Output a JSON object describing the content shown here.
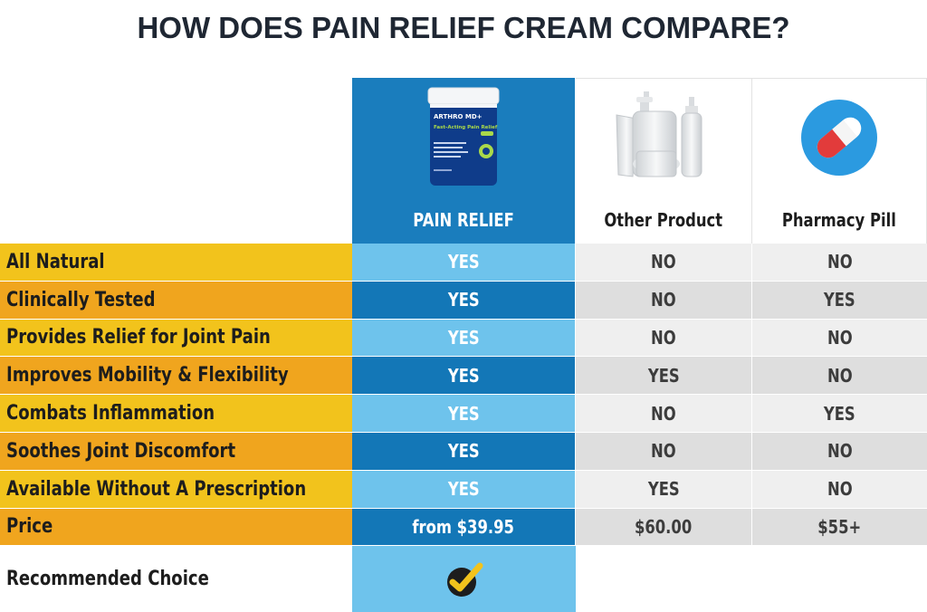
{
  "title": "HOW DOES PAIN RELIEF CREAM COMPARE?",
  "columns": [
    {
      "label": "PAIN RELIEF",
      "image": "arthro-md-cream-jar"
    },
    {
      "label": "Other Product",
      "image": "generic-bottles"
    },
    {
      "label": "Pharmacy Pill",
      "image": "pill-capsule-icon"
    }
  ],
  "product_jar_text": {
    "brand": "ARTHRO MD+",
    "line1": "Fast-Acting Pain Relief"
  },
  "rows": [
    {
      "feature": "All Natural",
      "values": [
        "YES",
        "NO",
        "NO"
      ]
    },
    {
      "feature": "Clinically Tested",
      "values": [
        "YES",
        "NO",
        "YES"
      ]
    },
    {
      "feature": "Provides Relief for Joint Pain",
      "values": [
        "YES",
        "NO",
        "NO"
      ]
    },
    {
      "feature": "Improves Mobility & Flexibility",
      "values": [
        "YES",
        "YES",
        "NO"
      ]
    },
    {
      "feature": "Combats Inflammation",
      "values": [
        "YES",
        "NO",
        "YES"
      ]
    },
    {
      "feature": "Soothes Joint Discomfort",
      "values": [
        "YES",
        "NO",
        "NO"
      ]
    },
    {
      "feature": "Available Without A Prescription",
      "values": [
        "YES",
        "YES",
        "NO"
      ]
    },
    {
      "feature": "Price",
      "values": [
        "from $39.95",
        "$60.00",
        "$55+"
      ]
    }
  ],
  "recommended": {
    "label": "Recommended Choice",
    "icon": "checkmark-badge-icon"
  },
  "colors": {
    "accent_blue": "#1377b7",
    "light_blue": "#6ec3ec",
    "yellow": "#f2c31c",
    "orange": "#f0a51e",
    "pill_blue": "#2b9ae0",
    "pill_red": "#e23b3b"
  }
}
